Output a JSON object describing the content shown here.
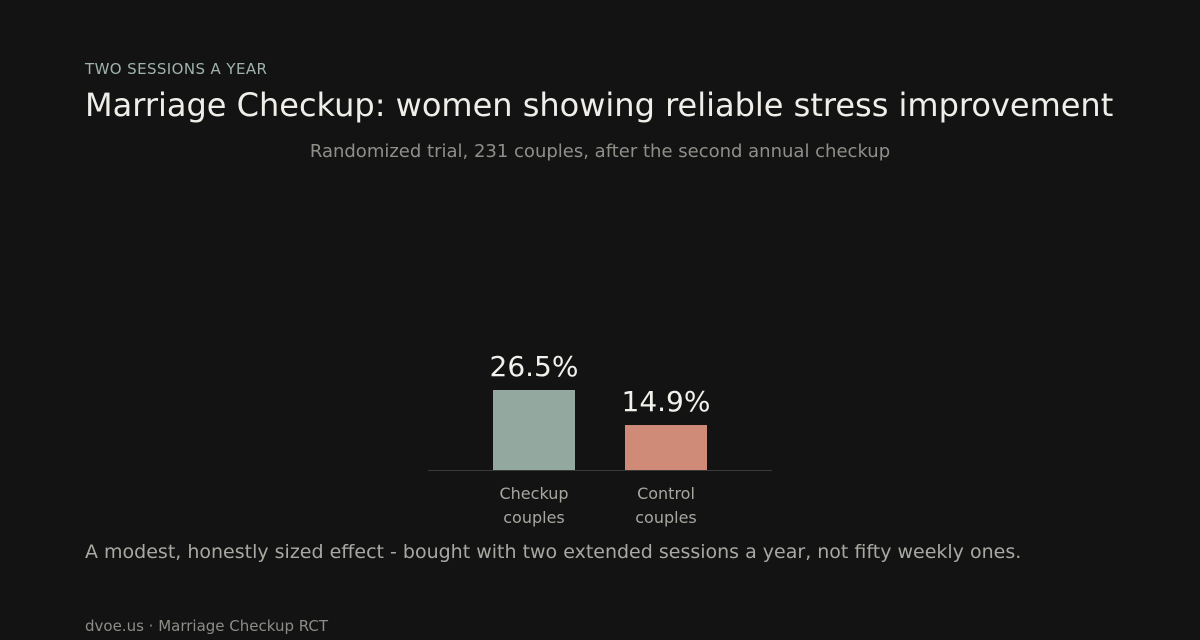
{
  "header": {
    "eyebrow": "TWO SESSIONS A YEAR",
    "title": "Marriage Checkup: women showing reliable stress improvement",
    "subtitle": "Randomized trial, 231 couples, after the second annual checkup"
  },
  "caption": "A modest, honestly sized effect - bought with two extended sessions a year, not fifty weekly ones.",
  "footer": "dvoe.us · Marriage Checkup RCT",
  "chart_data": {
    "type": "bar",
    "categories": [
      [
        "Checkup",
        "couples"
      ],
      [
        "Control",
        "couples"
      ]
    ],
    "values": [
      26.5,
      14.9
    ],
    "value_labels": [
      "26.5%",
      "14.9%"
    ],
    "colors": [
      "#93a99f",
      "#cf8b77"
    ],
    "ylabel": "",
    "xlabel": "",
    "grid": false,
    "legend": "none"
  }
}
